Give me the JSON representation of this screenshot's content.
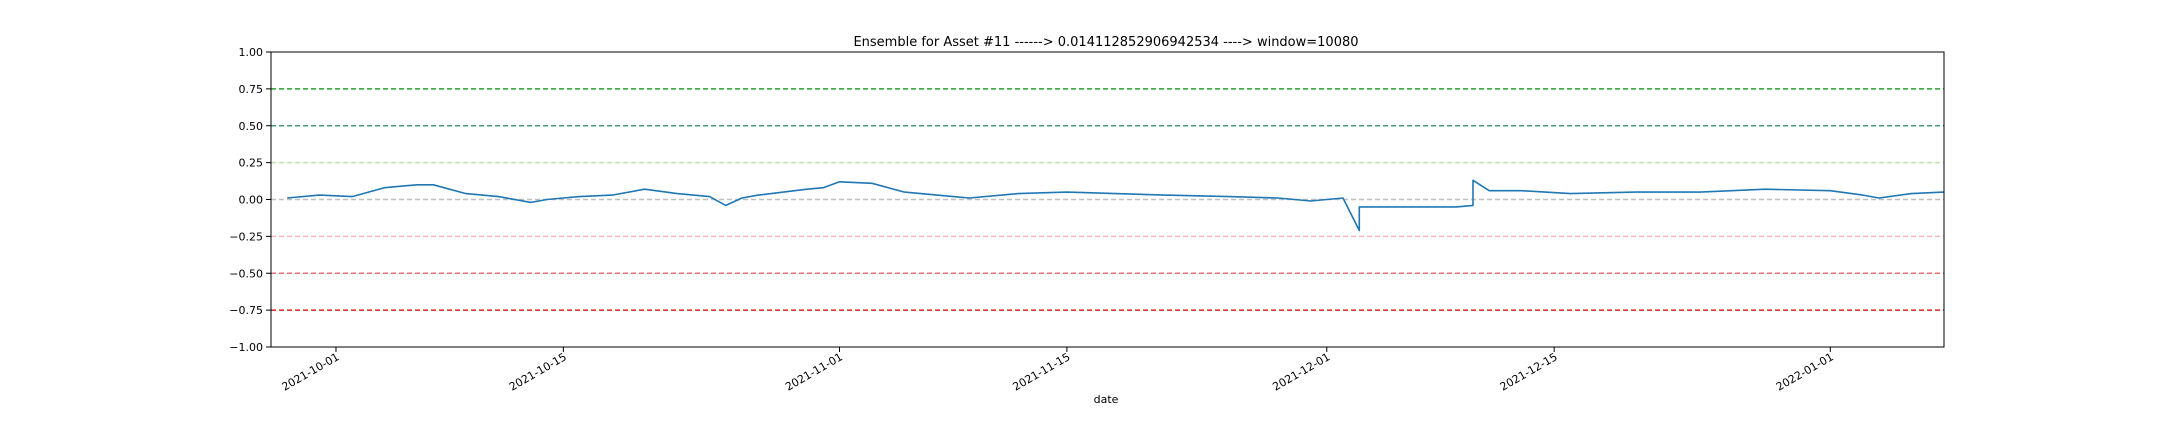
{
  "chart_data": {
    "type": "line",
    "title": "Ensemble for Asset #11 ------> 0.014112852906942534 ----> window=10080",
    "xlabel": "date",
    "ylabel": "",
    "x_range": [
      "2021-09-27",
      "2022-01-08"
    ],
    "ylim": [
      -1.0,
      1.0
    ],
    "x_ticks": [
      "2021-10-01",
      "2021-10-15",
      "2021-11-01",
      "2021-11-15",
      "2021-12-01",
      "2021-12-15",
      "2022-01-01"
    ],
    "y_ticks": [
      "1.00",
      "0.75",
      "0.50",
      "0.25",
      "0.00",
      "−0.25",
      "−0.50",
      "−0.75",
      "−1.00"
    ],
    "grid": false,
    "reference_lines": [
      {
        "y": 0.75,
        "color": "#2ca02c"
      },
      {
        "y": 0.5,
        "color": "#4c9f70"
      },
      {
        "y": 0.25,
        "color": "#bde4a8"
      },
      {
        "y": 0.0,
        "color": "#bfbfbf"
      },
      {
        "y": -0.25,
        "color": "#f4b8b8"
      },
      {
        "y": -0.5,
        "color": "#ef6f6f"
      },
      {
        "y": -0.75,
        "color": "#d62728"
      }
    ],
    "series": [
      {
        "color": "#1f77b4",
        "x": [
          "2021-09-28",
          "2021-09-30",
          "2021-10-02",
          "2021-10-03",
          "2021-10-04",
          "2021-10-05",
          "2021-10-06",
          "2021-10-07",
          "2021-10-09",
          "2021-10-11",
          "2021-10-13",
          "2021-10-14",
          "2021-10-15",
          "2021-10-16",
          "2021-10-18",
          "2021-10-20",
          "2021-10-22",
          "2021-10-24",
          "2021-10-25",
          "2021-10-26",
          "2021-10-27",
          "2021-10-30",
          "2021-10-31",
          "2021-11-01",
          "2021-11-03",
          "2021-11-05",
          "2021-11-07",
          "2021-11-08",
          "2021-11-09",
          "2021-11-12",
          "2021-11-15",
          "2021-11-18",
          "2021-11-21",
          "2021-11-25",
          "2021-11-28",
          "2021-11-30",
          "2021-12-02",
          "2021-12-03",
          "2021-12-03",
          "2021-12-04",
          "2021-12-07",
          "2021-12-09",
          "2021-12-10",
          "2021-12-10",
          "2021-12-11",
          "2021-12-13",
          "2021-12-16",
          "2021-12-20",
          "2021-12-24",
          "2021-12-28",
          "2022-01-01",
          "2022-01-03",
          "2022-01-04",
          "2022-01-06",
          "2022-01-08"
        ],
        "y": [
          0.01,
          0.03,
          0.02,
          0.05,
          0.08,
          0.09,
          0.1,
          0.1,
          0.04,
          0.02,
          -0.02,
          0.0,
          0.01,
          0.02,
          0.03,
          0.07,
          0.04,
          0.02,
          -0.04,
          0.01,
          0.03,
          0.07,
          0.08,
          0.12,
          0.11,
          0.05,
          0.03,
          0.02,
          0.01,
          0.04,
          0.05,
          0.04,
          0.03,
          0.02,
          0.01,
          -0.01,
          0.01,
          -0.21,
          -0.05,
          -0.05,
          -0.05,
          -0.05,
          -0.04,
          0.13,
          0.06,
          0.06,
          0.04,
          0.05,
          0.05,
          0.07,
          0.06,
          0.03,
          0.01,
          0.04,
          0.05
        ]
      }
    ]
  }
}
